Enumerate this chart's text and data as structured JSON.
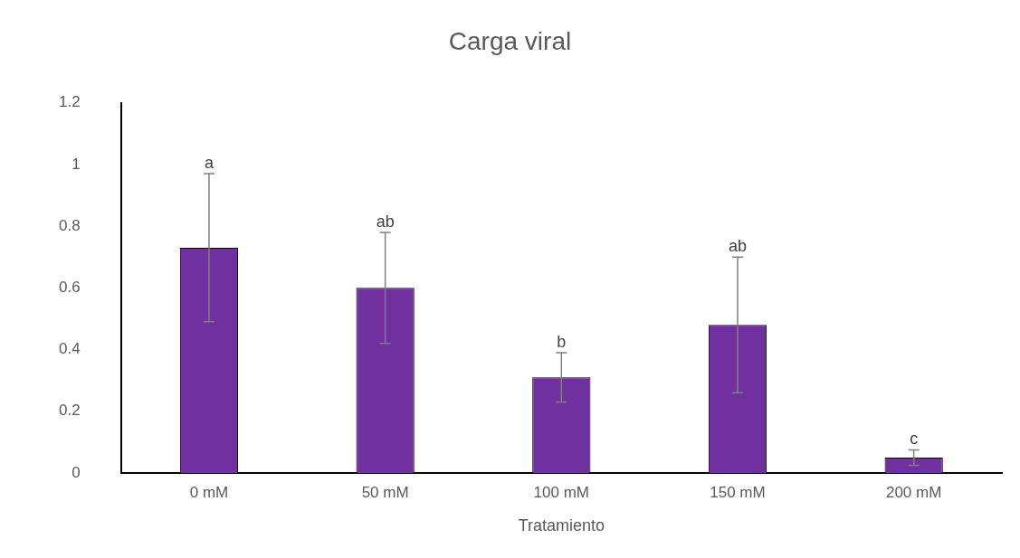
{
  "chart_data": {
    "type": "bar",
    "title": "Carga viral",
    "xlabel": "Tratamiento",
    "categories": [
      "0 mM",
      "50 mM",
      "100 mM",
      "150 mM",
      "200 mM"
    ],
    "values": [
      0.73,
      0.6,
      0.31,
      0.48,
      0.05
    ],
    "errors": [
      0.24,
      0.18,
      0.08,
      0.22,
      0.025
    ],
    "color": "#7030a0",
    "ylim": [
      0,
      1.2
    ],
    "yticks": [
      0,
      0.2,
      0.4,
      0.6,
      0.8,
      1,
      1.2
    ],
    "grid": false,
    "legend": false,
    "annotations": [
      {
        "text": "a",
        "x": "0 mM",
        "y": 0.97
      },
      {
        "text": "ab",
        "x": "50 mM",
        "y": 0.78
      },
      {
        "text": "b",
        "x": "100 mM",
        "y": 0.39
      },
      {
        "text": "ab",
        "x": "150 mM",
        "y": 0.7
      },
      {
        "text": "c",
        "x": "200 mM",
        "y": 0.075
      }
    ]
  }
}
